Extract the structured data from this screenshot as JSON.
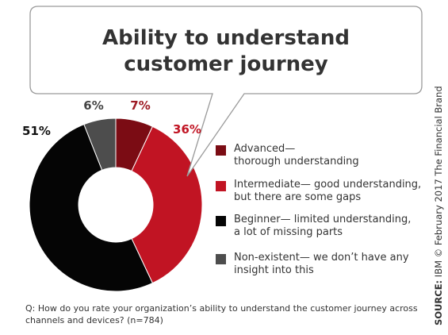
{
  "title_line1": "Ability to understand",
  "title_line2": "customer journey",
  "question": "Q: How do you rate your organization’s ability to understand the customer journey across channels and devices? (n=784)",
  "source_label": "SOURCE:",
  "source_text": "IBM © February 2017 The Financial Brand",
  "chart_data": {
    "type": "pie",
    "title": "Ability to understand customer journey",
    "slices": [
      {
        "label": "Advanced— thorough understanding",
        "value": 7,
        "value_label": "7%",
        "color": "#7b0c14"
      },
      {
        "label": "Intermediate— good understanding, but there are some gaps",
        "value": 36,
        "value_label": "36%",
        "color": "#c11423"
      },
      {
        "label": "Beginner— limited understanding, a lot of missing parts",
        "value": 51,
        "value_label": "51%",
        "color": "#050505"
      },
      {
        "label": "Non-existent— we don’t have any insight into this",
        "value": 6,
        "value_label": "6%",
        "color": "#4d4d4d"
      }
    ],
    "legend_placement": "right",
    "legend_display": [
      "Advanced—\nthorough understanding",
      "Intermediate— good understanding,\nbut there are some gaps",
      "Beginner— limited understanding,\na lot of missing parts",
      "Non-existent— we don’t have any\ninsight into this"
    ]
  }
}
